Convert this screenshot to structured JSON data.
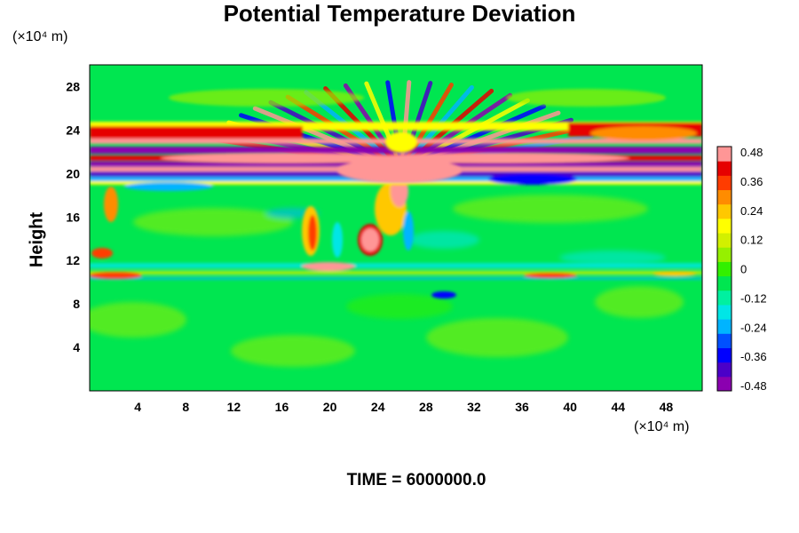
{
  "chart_data": {
    "type": "heatmap",
    "title": "Potential Temperature Deviation",
    "ylabel": "Height",
    "xunit": "(×10⁴ m)",
    "yunit": "(×10⁴ m)",
    "footer": "TIME = 6000000.0",
    "xlim": [
      0,
      51
    ],
    "ylim": [
      0,
      30
    ],
    "xticks": [
      "4",
      "8",
      "12",
      "16",
      "20",
      "24",
      "28",
      "32",
      "36",
      "40",
      "44",
      "48"
    ],
    "xtick_values": [
      4,
      8,
      12,
      16,
      20,
      24,
      28,
      32,
      36,
      40,
      44,
      48
    ],
    "yticks": [
      "4",
      "8",
      "12",
      "16",
      "20",
      "24",
      "28"
    ],
    "ytick_values": [
      4,
      8,
      12,
      16,
      20,
      24,
      28
    ],
    "colorbar": {
      "labels": [
        "0.48",
        "0.36",
        "0.24",
        "0.12",
        "0",
        "-0.12",
        "-0.24",
        "-0.36",
        "-0.48"
      ],
      "min": -0.48,
      "max": 0.48,
      "colors": [
        "#8b00b0",
        "#4b00c8",
        "#0000ff",
        "#0050ff",
        "#00b4ff",
        "#00e6e6",
        "#00f0a0",
        "#00e650",
        "#32f000",
        "#96f000",
        "#d2f000",
        "#ffff00",
        "#ffc800",
        "#ff8c00",
        "#ff3c00",
        "#e60000",
        "#ff9696"
      ]
    },
    "features": [
      {
        "name": "stratospheric wave band",
        "y_range": [
          19,
          25
        ],
        "note": "alternating strong positive/negative bands"
      },
      {
        "name": "convective plume",
        "x_center": 24,
        "y_range": [
          10,
          20
        ]
      },
      {
        "name": "gravity wave fan",
        "x_center": 26,
        "y_range": [
          20,
          29
        ]
      }
    ]
  }
}
